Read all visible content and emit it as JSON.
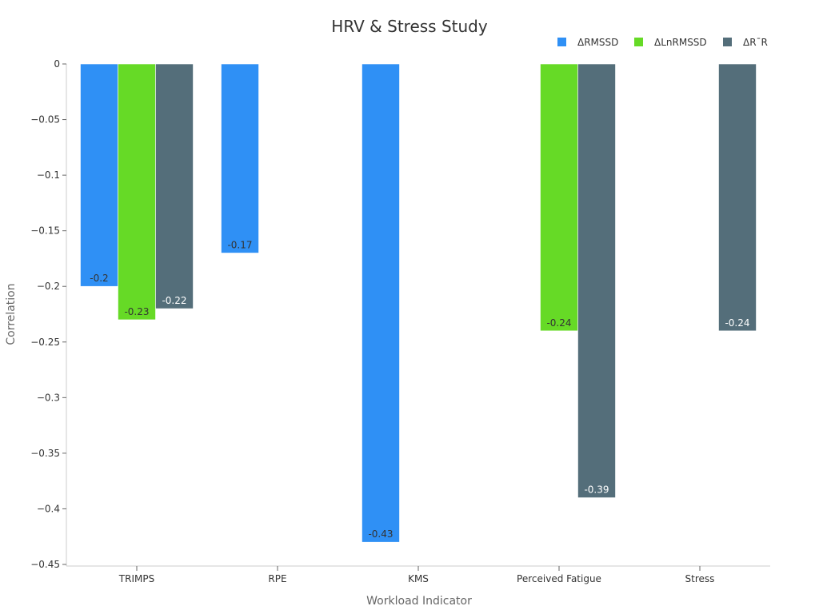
{
  "chart_data": {
    "type": "bar",
    "title": "HRV & Stress Study",
    "xlabel": "Workload Indicator",
    "ylabel": "Correlation",
    "categories": [
      "TRIMPS",
      "RPE",
      "KMS",
      "Perceived Fatigue",
      "Stress"
    ],
    "series": [
      {
        "name": "ΔRMSSD",
        "color": "#2f90f5",
        "values": [
          -0.2,
          -0.17,
          -0.43,
          null,
          null
        ],
        "labels": [
          "-0.2",
          "-0.17",
          "-0.43",
          "",
          ""
        ],
        "label_color": "#333333"
      },
      {
        "name": "ΔLnRMSSD",
        "color": "#66da26",
        "values": [
          -0.23,
          null,
          null,
          -0.24,
          null
        ],
        "labels": [
          "-0.23",
          "",
          "",
          "-0.24",
          ""
        ],
        "label_color": "#333333"
      },
      {
        "name": "ΔR¯R",
        "color": "#546e7a",
        "values": [
          -0.22,
          null,
          null,
          -0.39,
          -0.24
        ],
        "labels": [
          "-0.22",
          "",
          "",
          "-0.39",
          "-0.24"
        ],
        "label_color": "#ffffff"
      }
    ],
    "ylim": [
      -0.45,
      0
    ],
    "yticks": [
      0,
      -0.05,
      -0.1,
      -0.15,
      -0.2,
      -0.25,
      -0.3,
      -0.35,
      -0.4,
      -0.45
    ],
    "ytick_labels": [
      "0",
      "−0.05",
      "−0.1",
      "−0.15",
      "−0.2",
      "−0.25",
      "−0.3",
      "−0.35",
      "−0.4",
      "−0.45"
    ],
    "grid": false,
    "legend_position": "top-right"
  }
}
